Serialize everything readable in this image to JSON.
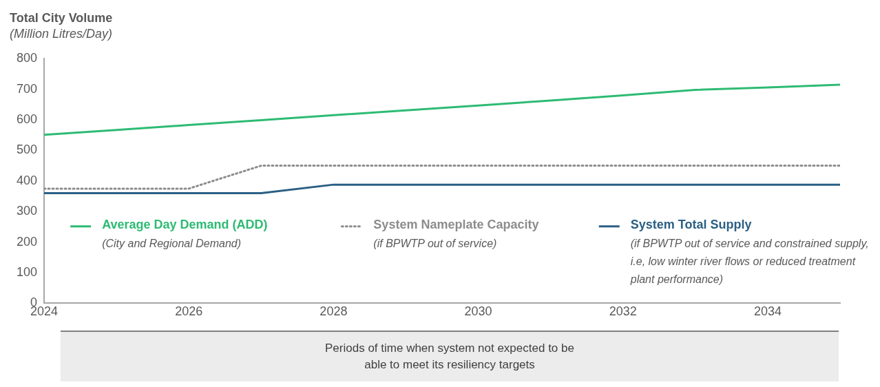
{
  "chart_data": {
    "type": "line",
    "title": "Total City Volume",
    "subtitle": "(Million Litres/Day)",
    "x": [
      2024,
      2025,
      2026,
      2027,
      2028,
      2029,
      2030,
      2031,
      2032,
      2033,
      2034,
      2035
    ],
    "xlim": [
      2024,
      2035
    ],
    "xticks": [
      2024,
      2026,
      2028,
      2030,
      2032,
      2034
    ],
    "ylim": [
      0,
      800
    ],
    "yticks": [
      0,
      100,
      200,
      300,
      400,
      500,
      600,
      700,
      800
    ],
    "grid": false,
    "legend": "bottom",
    "series": [
      {
        "name": "Average Day Demand (ADD)",
        "color": "#2dbb73",
        "line_style": "solid",
        "values": [
          551,
          567,
          583,
          599,
          615,
          631,
          647,
          663,
          680,
          698,
          706,
          715
        ]
      },
      {
        "name": "System Nameplate Capacity",
        "color": "#8c8c8c",
        "line_style": "dotted",
        "values": [
          375,
          375,
          375,
          450,
          450,
          450,
          450,
          450,
          450,
          450,
          450,
          450
        ]
      },
      {
        "name": "System Total Supply",
        "color": "#2a5f84",
        "line_style": "solid",
        "values": [
          360,
          360,
          360,
          360,
          388,
          388,
          388,
          388,
          388,
          388,
          388,
          388
        ]
      }
    ],
    "annotations": [
      "(City and Regional Demand)",
      "(if BPWTP out of service)",
      "(if BPWTP out of service and constrained supply, i.e, low winter river flows or reduced treatment plant performance)",
      "Periods of time when system not expected to be able to meet its resiliency targets"
    ]
  }
}
